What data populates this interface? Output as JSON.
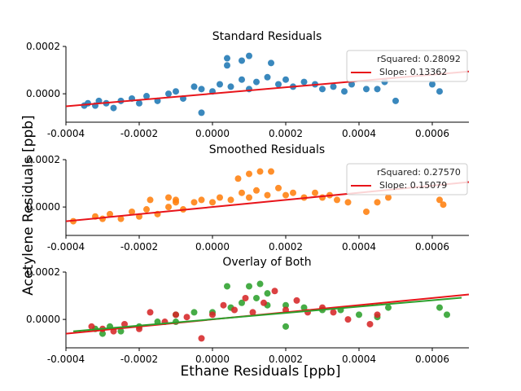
{
  "figure": {
    "xlabel": "Ethane Residuals [ppb]",
    "ylabel": "Acetylene Residuals [ppb]"
  },
  "chart_data": [
    {
      "type": "scatter",
      "title": "Standard Residuals",
      "xlim": [
        -0.0004,
        0.0007
      ],
      "ylim": [
        -0.00012,
        0.0002
      ],
      "x_ticks": [
        "-0.0004",
        "-0.0002",
        "0.0000",
        "0.0002",
        "0.0004",
        "0.0006"
      ],
      "y_ticks": [
        "0.0000",
        "0.0002"
      ],
      "series": [
        {
          "kind": "points",
          "color": "#1f77b4",
          "points": [
            [
              -0.00032,
              -5e-05
            ],
            [
              -0.00031,
              -3e-05
            ],
            [
              -0.00029,
              -4e-05
            ],
            [
              -0.00027,
              -6e-05
            ],
            [
              -0.00025,
              -3e-05
            ],
            [
              -0.00022,
              -2e-05
            ],
            [
              -0.0002,
              -4e-05
            ],
            [
              -0.00018,
              -1e-05
            ],
            [
              -0.00015,
              -3e-05
            ],
            [
              -0.00012,
              0.0
            ],
            [
              -0.0001,
              1e-05
            ],
            [
              -8e-05,
              -2e-05
            ],
            [
              -5e-05,
              3e-05
            ],
            [
              -3e-05,
              2e-05
            ],
            [
              0.0,
              1e-05
            ],
            [
              2e-05,
              4e-05
            ],
            [
              5e-05,
              3e-05
            ],
            [
              8e-05,
              6e-05
            ],
            [
              0.0001,
              2e-05
            ],
            [
              0.00012,
              5e-05
            ],
            [
              0.00015,
              7e-05
            ],
            [
              0.00018,
              4e-05
            ],
            [
              0.0002,
              6e-05
            ],
            [
              0.00022,
              3e-05
            ],
            [
              0.00025,
              5e-05
            ],
            [
              0.00028,
              4e-05
            ],
            [
              0.0003,
              2e-05
            ],
            [
              0.00033,
              3e-05
            ],
            [
              0.00036,
              1e-05
            ],
            [
              0.00038,
              4e-05
            ],
            [
              0.0001,
              0.00016
            ],
            [
              8e-05,
              0.00014
            ],
            [
              0.00016,
              0.00013
            ],
            [
              4e-05,
              0.00012
            ],
            [
              -3e-05,
              -8e-05
            ],
            [
              4e-05,
              0.00015
            ],
            [
              0.00042,
              2e-05
            ],
            [
              0.00045,
              2e-05
            ],
            [
              0.00047,
              5e-05
            ],
            [
              0.0005,
              -3e-05
            ],
            [
              0.0006,
              4e-05
            ],
            [
              0.00062,
              1e-05
            ],
            [
              -0.00035,
              -5e-05
            ],
            [
              -0.00034,
              -4e-05
            ]
          ]
        },
        {
          "kind": "fit",
          "color": "#e8141a",
          "x_range": [
            -0.0004,
            0.0007
          ],
          "intercept": 6e-07,
          "slope": 0.13362
        }
      ],
      "legend": {
        "position": "top-right",
        "rsq_text": "rSquared: 0.28092",
        "slope_text": "Slope: 0.13362"
      }
    },
    {
      "type": "scatter",
      "title": "Smoothed Residuals",
      "xlim": [
        -0.0004,
        0.0007
      ],
      "ylim": [
        -0.00012,
        0.0002
      ],
      "x_ticks": [
        "-0.0004",
        "-0.0002",
        "0.0000",
        "0.0002",
        "0.0004",
        "0.0006"
      ],
      "y_ticks": [
        "0.0000",
        "0.0002"
      ],
      "series": [
        {
          "kind": "points",
          "color": "#ff7f0e",
          "points": [
            [
              -0.00032,
              -4e-05
            ],
            [
              -0.0003,
              -5e-05
            ],
            [
              -0.00028,
              -3e-05
            ],
            [
              -0.00025,
              -5e-05
            ],
            [
              -0.00022,
              -2e-05
            ],
            [
              -0.0002,
              -4e-05
            ],
            [
              -0.00018,
              -1e-05
            ],
            [
              -0.00015,
              -3e-05
            ],
            [
              -0.00012,
              0.0
            ],
            [
              -0.0001,
              3e-05
            ],
            [
              -8e-05,
              -1e-05
            ],
            [
              -5e-05,
              2e-05
            ],
            [
              -3e-05,
              3e-05
            ],
            [
              0.0,
              2e-05
            ],
            [
              2e-05,
              4e-05
            ],
            [
              5e-05,
              3e-05
            ],
            [
              8e-05,
              6e-05
            ],
            [
              0.0001,
              4e-05
            ],
            [
              0.00012,
              7e-05
            ],
            [
              0.00015,
              5e-05
            ],
            [
              0.00018,
              8e-05
            ],
            [
              0.0002,
              5e-05
            ],
            [
              0.00022,
              6e-05
            ],
            [
              0.00025,
              4e-05
            ],
            [
              0.00028,
              6e-05
            ],
            [
              0.0003,
              4e-05
            ],
            [
              0.00032,
              5e-05
            ],
            [
              0.00034,
              3e-05
            ],
            [
              0.00037,
              2e-05
            ],
            [
              0.00013,
              0.00015
            ],
            [
              0.0001,
              0.00014
            ],
            [
              0.00016,
              0.00015
            ],
            [
              7e-05,
              0.00012
            ],
            [
              -0.00017,
              3e-05
            ],
            [
              -0.00012,
              4e-05
            ],
            [
              -0.0001,
              2e-05
            ],
            [
              0.00042,
              -2e-05
            ],
            [
              0.00045,
              2e-05
            ],
            [
              0.00048,
              4e-05
            ],
            [
              0.00062,
              3e-05
            ],
            [
              0.00063,
              1e-05
            ],
            [
              -0.00038,
              -6e-05
            ]
          ]
        },
        {
          "kind": "fit",
          "color": "#e8141a",
          "x_range": [
            -0.0004,
            0.0007
          ],
          "intercept": 0.0,
          "slope": 0.15079
        }
      ],
      "legend": {
        "position": "top-right",
        "rsq_text": "rSquared: 0.27570",
        "slope_text": "Slope: 0.15079"
      }
    },
    {
      "type": "scatter",
      "title": "Overlay of Both",
      "xlim": [
        -0.0004,
        0.0007
      ],
      "ylim": [
        -0.00012,
        0.0002
      ],
      "x_ticks": [
        "-0.0004",
        "-0.0002",
        "0.0000",
        "0.0002",
        "0.0004",
        "0.0006"
      ],
      "y_ticks": [
        "0.0000",
        "0.0002"
      ],
      "series": [
        {
          "kind": "points",
          "color": "#2ca02c",
          "points": [
            [
              -0.00032,
              -4e-05
            ],
            [
              -0.0003,
              -6e-05
            ],
            [
              -0.00028,
              -3e-05
            ],
            [
              -0.00025,
              -5e-05
            ],
            [
              -0.0002,
              -3e-05
            ],
            [
              -0.00015,
              -1e-05
            ],
            [
              -0.0001,
              2e-05
            ],
            [
              -5e-05,
              3e-05
            ],
            [
              0.0,
              3e-05
            ],
            [
              5e-05,
              5e-05
            ],
            [
              8e-05,
              7e-05
            ],
            [
              0.0001,
              0.00014
            ],
            [
              0.00012,
              9e-05
            ],
            [
              0.00015,
              6e-05
            ],
            [
              0.0002,
              6e-05
            ],
            [
              0.00025,
              5e-05
            ],
            [
              0.0003,
              4e-05
            ],
            [
              0.00035,
              4e-05
            ],
            [
              0.0004,
              2e-05
            ],
            [
              0.00045,
              1e-05
            ],
            [
              0.00048,
              5e-05
            ],
            [
              0.00062,
              5e-05
            ],
            [
              0.00064,
              2e-05
            ],
            [
              0.00013,
              0.00015
            ],
            [
              0.00015,
              0.00011
            ],
            [
              4e-05,
              0.00014
            ],
            [
              -0.0001,
              -1e-05
            ],
            [
              0.0002,
              -3e-05
            ]
          ]
        },
        {
          "kind": "points",
          "color": "#d62728",
          "points": [
            [
              -0.00033,
              -3e-05
            ],
            [
              -0.0003,
              -4e-05
            ],
            [
              -0.00027,
              -5e-05
            ],
            [
              -0.00024,
              -2e-05
            ],
            [
              -0.0002,
              -4e-05
            ],
            [
              -0.00017,
              3e-05
            ],
            [
              -0.00013,
              -1e-05
            ],
            [
              -0.0001,
              2e-05
            ],
            [
              -7e-05,
              1e-05
            ],
            [
              -3e-05,
              -8e-05
            ],
            [
              0.0,
              2e-05
            ],
            [
              3e-05,
              6e-05
            ],
            [
              6e-05,
              4e-05
            ],
            [
              9e-05,
              9e-05
            ],
            [
              0.00011,
              3e-05
            ],
            [
              0.00014,
              7e-05
            ],
            [
              0.00017,
              0.00012
            ],
            [
              0.0002,
              4e-05
            ],
            [
              0.00023,
              8e-05
            ],
            [
              0.00026,
              3e-05
            ],
            [
              0.0003,
              5e-05
            ],
            [
              0.00033,
              3e-05
            ],
            [
              0.00037,
              0.0
            ],
            [
              0.00043,
              -2e-05
            ],
            [
              0.00045,
              2e-05
            ]
          ]
        },
        {
          "kind": "fit",
          "color": "#e8141a",
          "x_range": [
            -0.0004,
            0.0007
          ],
          "intercept": 0.0,
          "slope": 0.15079
        },
        {
          "kind": "fit",
          "color": "#2ca02c",
          "x_range": [
            -0.00038,
            0.00068
          ],
          "intercept": 6e-07,
          "slope": 0.13362
        }
      ]
    }
  ]
}
